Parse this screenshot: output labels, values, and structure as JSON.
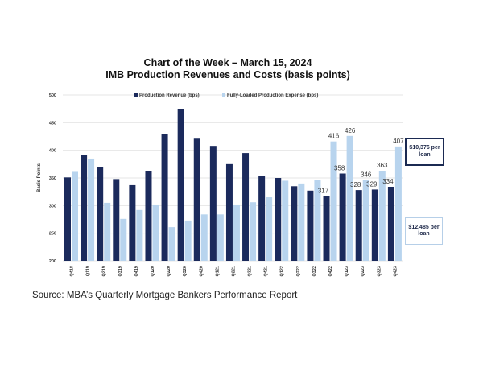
{
  "chart_data": {
    "type": "bar",
    "title": "Chart of the Week – March 15, 2024",
    "subtitle": "IMB Production Revenues and Costs (basis points)",
    "xlabel": "",
    "ylabel": "Basis Points",
    "ylim": [
      200,
      500
    ],
    "yticks": [
      200,
      250,
      300,
      350,
      400,
      450,
      500
    ],
    "grid": true,
    "legend_position": "top-center",
    "categories": [
      "Q418",
      "Q119",
      "Q219",
      "Q319",
      "Q419",
      "Q120",
      "Q220",
      "Q320",
      "Q420",
      "Q121",
      "Q221",
      "Q321",
      "Q421",
      "Q122",
      "Q222",
      "Q322",
      "Q422",
      "Q123",
      "Q223",
      "Q323",
      "Q423"
    ],
    "series": [
      {
        "name": "Production Revenue (bps)",
        "color": "#1b2a5c",
        "values": [
          351,
          392,
          370,
          348,
          337,
          363,
          429,
          475,
          421,
          408,
          375,
          395,
          353,
          350,
          335,
          327,
          317,
          358,
          328,
          329,
          334
        ],
        "labels": [
          "",
          "",
          "",
          "",
          "",
          "",
          "",
          "",
          "",
          "",
          "",
          "",
          "",
          "",
          "",
          "",
          "317",
          "358",
          "328",
          "329",
          "334"
        ]
      },
      {
        "name": "Fully-Loaded Production Expense (bps)",
        "color": "#b8d4ee",
        "values": [
          361,
          385,
          305,
          276,
          292,
          302,
          261,
          273,
          284,
          284,
          302,
          306,
          315,
          345,
          340,
          346,
          416,
          426,
          346,
          363,
          407
        ],
        "labels": [
          "",
          "",
          "",
          "",
          "",
          "",
          "",
          "",
          "",
          "",
          "",
          "",
          "",
          "",
          "",
          "",
          "416",
          "426",
          "346",
          "363",
          "407"
        ]
      }
    ],
    "annotations": [
      "$10,376 per loan",
      "$12,485 per loan"
    ]
  },
  "source": "Source: MBA’s Quarterly Mortgage Bankers Performance Report"
}
